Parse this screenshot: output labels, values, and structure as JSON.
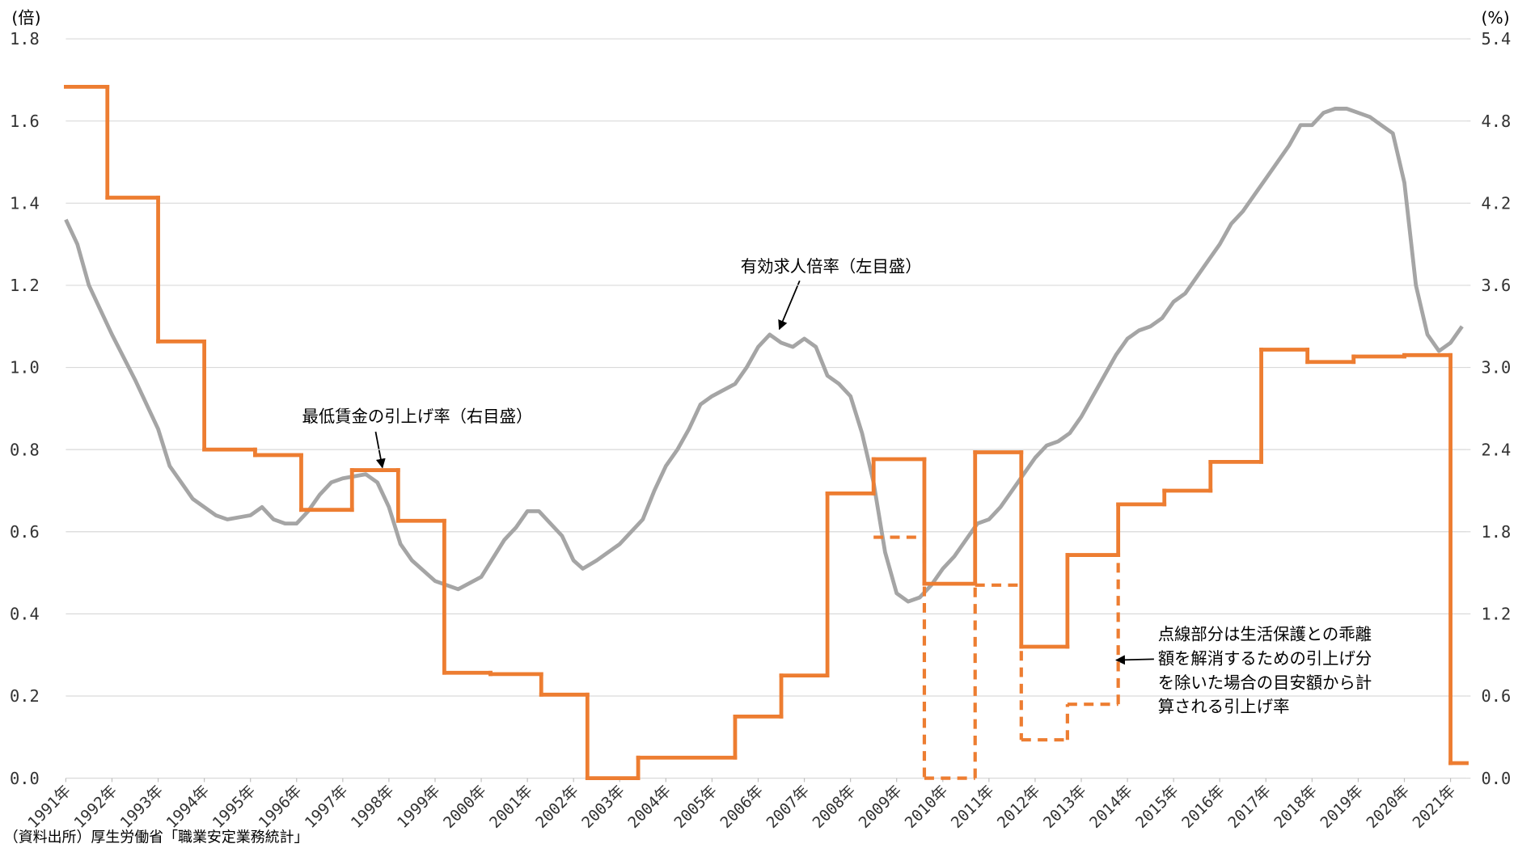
{
  "chart_data": {
    "type": "line",
    "y_unit": "(倍)",
    "y2_unit": "(%)",
    "xlim": [
      1991,
      2021.35
    ],
    "xticks": [
      {
        "value": 1991,
        "label": "1991年"
      },
      {
        "value": 1992,
        "label": "1992年"
      },
      {
        "value": 1993,
        "label": "1993年"
      },
      {
        "value": 1994,
        "label": "1994年"
      },
      {
        "value": 1995,
        "label": "1995年"
      },
      {
        "value": 1996,
        "label": "1996年"
      },
      {
        "value": 1997,
        "label": "1997年"
      },
      {
        "value": 1998,
        "label": "1998年"
      },
      {
        "value": 1999,
        "label": "1999年"
      },
      {
        "value": 2000,
        "label": "2000年"
      },
      {
        "value": 2001,
        "label": "2001年"
      },
      {
        "value": 2002,
        "label": "2002年"
      },
      {
        "value": 2003,
        "label": "2003年"
      },
      {
        "value": 2004,
        "label": "2004年"
      },
      {
        "value": 2005,
        "label": "2005年"
      },
      {
        "value": 2006,
        "label": "2006年"
      },
      {
        "value": 2007,
        "label": "2007年"
      },
      {
        "value": 2008,
        "label": "2008年"
      },
      {
        "value": 2009,
        "label": "2009年"
      },
      {
        "value": 2010,
        "label": "2010年"
      },
      {
        "value": 2011,
        "label": "2011年"
      },
      {
        "value": 2012,
        "label": "2012年"
      },
      {
        "value": 2013,
        "label": "2013年"
      },
      {
        "value": 2014,
        "label": "2014年"
      },
      {
        "value": 2015,
        "label": "2015年"
      },
      {
        "value": 2016,
        "label": "2016年"
      },
      {
        "value": 2017,
        "label": "2017年"
      },
      {
        "value": 2018,
        "label": "2018年"
      },
      {
        "value": 2019,
        "label": "2019年"
      },
      {
        "value": 2020,
        "label": "2020年"
      },
      {
        "value": 2021,
        "label": "2021年"
      }
    ],
    "ylim": [
      0,
      1.8
    ],
    "yticks": [
      {
        "value": 0,
        "label": "0.0"
      },
      0.2,
      0.4,
      0.6,
      0.8,
      {
        "value": 1,
        "label": "1.0"
      },
      1.2,
      1.4,
      1.6,
      1.8
    ],
    "y2lim": [
      0,
      5.4
    ],
    "y2ticks": [
      {
        "value": 0,
        "label": "0.0"
      },
      0.6,
      1.2,
      1.8,
      2.4,
      {
        "value": 3,
        "label": "3.0"
      },
      3.6,
      4.2,
      4.8,
      5.4
    ],
    "grid": true,
    "series": [
      {
        "color": "#a5a5a5",
        "style": "line",
        "x": [
          1991,
          1991.25,
          1991.5,
          1991.75,
          1992,
          1992.5,
          1993,
          1993.25,
          1993.5,
          1993.75,
          1994,
          1994.25,
          1994.5,
          1995,
          1995.25,
          1995.5,
          1995.75,
          1996,
          1996.25,
          1996.5,
          1996.75,
          1997,
          1997.5,
          1997.75,
          1998,
          1998.25,
          1998.5,
          1999,
          1999.5,
          2000,
          2000.5,
          2000.75,
          2001,
          2001.25,
          2001.5,
          2001.75,
          2002,
          2002.2,
          2002.5,
          2003,
          2003.5,
          2003.75,
          2004,
          2004.25,
          2004.5,
          2004.75,
          2005,
          2005.5,
          2005.75,
          2006,
          2006.25,
          2006.5,
          2006.75,
          2007,
          2007.25,
          2007.5,
          2007.75,
          2008,
          2008.25,
          2008.5,
          2008.75,
          2009,
          2009.25,
          2009.5,
          2009.75,
          2010,
          2010.25,
          2010.5,
          2010.75,
          2011,
          2011.25,
          2011.5,
          2011.75,
          2012,
          2012.25,
          2012.5,
          2012.75,
          2013,
          2013.25,
          2013.5,
          2013.75,
          2014,
          2014.25,
          2014.5,
          2014.75,
          2015,
          2015.25,
          2015.5,
          2015.75,
          2016,
          2016.25,
          2016.5,
          2016.75,
          2017,
          2017.25,
          2017.5,
          2017.75,
          2018,
          2018.25,
          2018.5,
          2018.75,
          2019,
          2019.25,
          2019.5,
          2019.75,
          2020,
          2020.25,
          2020.5,
          2020.75,
          2021,
          2021.25
        ],
        "values": [
          1.36,
          1.3,
          1.2,
          1.14,
          1.08,
          0.97,
          0.85,
          0.76,
          0.72,
          0.68,
          0.66,
          0.64,
          0.63,
          0.64,
          0.66,
          0.63,
          0.62,
          0.62,
          0.65,
          0.69,
          0.72,
          0.73,
          0.74,
          0.72,
          0.66,
          0.57,
          0.53,
          0.48,
          0.46,
          0.49,
          0.58,
          0.61,
          0.65,
          0.65,
          0.62,
          0.59,
          0.53,
          0.51,
          0.53,
          0.57,
          0.63,
          0.7,
          0.76,
          0.8,
          0.85,
          0.91,
          0.93,
          0.96,
          1.0,
          1.05,
          1.08,
          1.06,
          1.05,
          1.07,
          1.05,
          0.98,
          0.96,
          0.93,
          0.84,
          0.72,
          0.55,
          0.45,
          0.43,
          0.44,
          0.47,
          0.51,
          0.54,
          0.58,
          0.62,
          0.63,
          0.66,
          0.7,
          0.74,
          0.78,
          0.81,
          0.82,
          0.84,
          0.88,
          0.93,
          0.98,
          1.03,
          1.07,
          1.09,
          1.1,
          1.12,
          1.16,
          1.18,
          1.22,
          1.26,
          1.3,
          1.35,
          1.38,
          1.42,
          1.46,
          1.5,
          1.54,
          1.59,
          1.59,
          1.62,
          1.63,
          1.63,
          1.62,
          1.61,
          1.59,
          1.57,
          1.45,
          1.2,
          1.08,
          1.04,
          1.06,
          1.1
        ]
      },
      {
        "color": "#ed7d31",
        "style": "step",
        "axis": "y2",
        "x": [
          1991,
          1991.9,
          1993,
          1994,
          1995.1,
          1996.1,
          1997.2,
          1998.2,
          1999.2,
          2000.2,
          2001.3,
          2002.3,
          2003.4,
          2005.5,
          2006.5,
          2007.5,
          2008.5,
          2009.6,
          2010.7,
          2011.7,
          2012.7,
          2013.8,
          2014.8,
          2015.8,
          2016.9,
          2017.9,
          2018.9,
          2020.0,
          2021.0
        ],
        "values": [
          5.05,
          4.24,
          3.19,
          2.4,
          2.36,
          1.96,
          2.25,
          1.88,
          0.77,
          0.76,
          0.61,
          0.0,
          0.15,
          0.45,
          0.75,
          2.08,
          2.33,
          1.42,
          2.38,
          0.96,
          1.63,
          2.0,
          2.1,
          2.31,
          3.13,
          3.04,
          3.08,
          3.09,
          0.11
        ]
      },
      {
        "color": "#ed7d31",
        "style": "dashed-step",
        "axis": "y2",
        "x": [
          2008.5,
          2009.6,
          2010.7,
          2011.7,
          2012.7,
          2013.8
        ],
        "values": [
          1.76,
          0.0,
          1.41,
          0.28,
          0.54,
          2.0
        ]
      }
    ],
    "annotations": [
      {
        "text": "有効求人倍率（左目盛）"
      },
      {
        "text": "最低賃金の引上げ率（右目盛）"
      },
      {
        "lines": [
          "点線部分は生活保護との乖離",
          "額を解消するための引上げ分",
          "を除いた場合の目安額から計",
          "算される引上げ率"
        ]
      }
    ],
    "source": "（資料出所）厚生労働省「職業安定業務統計」"
  }
}
